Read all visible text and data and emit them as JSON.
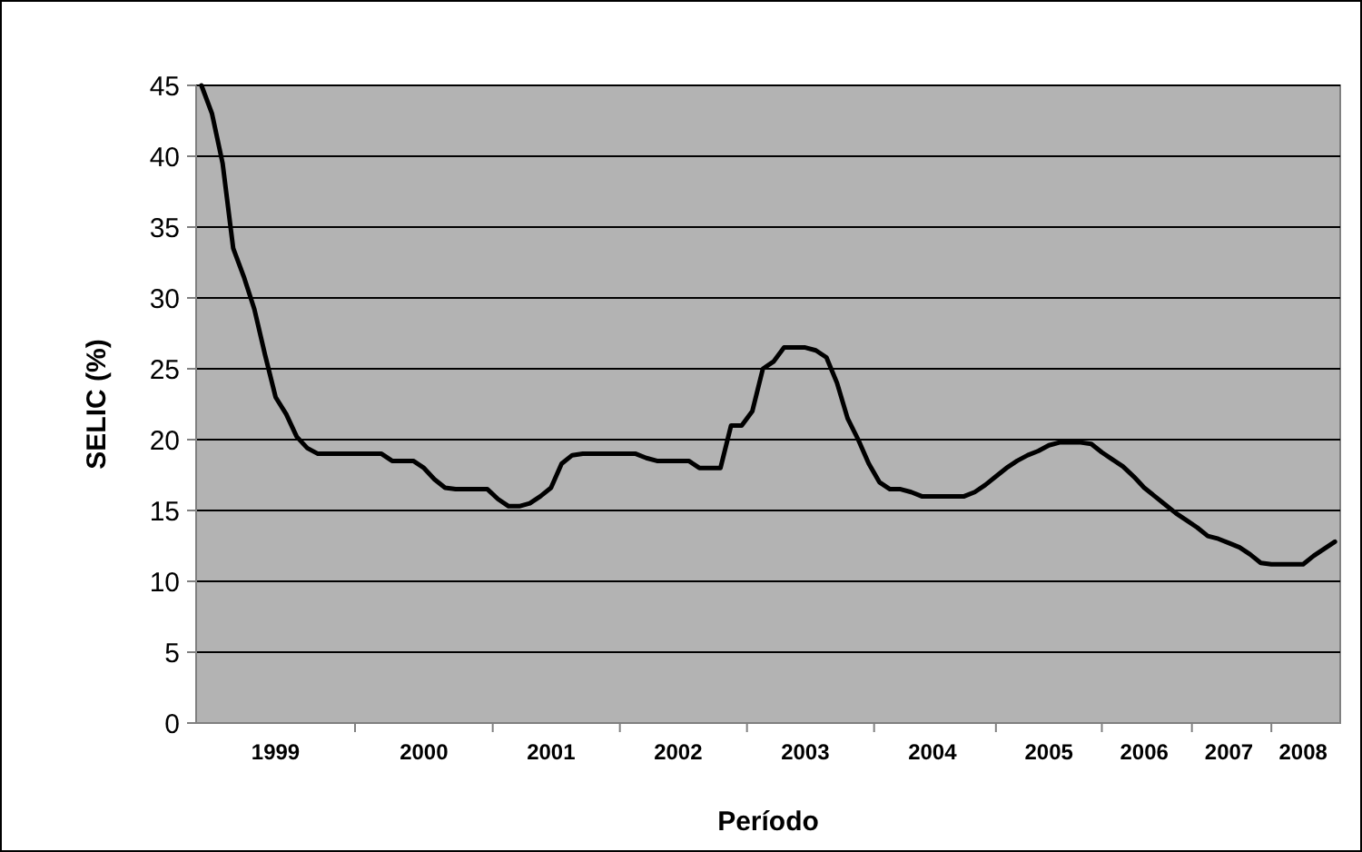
{
  "chart_data": {
    "type": "line",
    "xlabel": "Período",
    "ylabel": "SELIC (%)",
    "categories": [
      null,
      null,
      null,
      null,
      null,
      null,
      null,
      "1999",
      null,
      null,
      null,
      null,
      null,
      null,
      null,
      null,
      null,
      null,
      null,
      null,
      null,
      "2000",
      null,
      null,
      null,
      null,
      null,
      null,
      null,
      null,
      null,
      null,
      null,
      "2001",
      null,
      null,
      null,
      null,
      null,
      null,
      null,
      null,
      null,
      null,
      null,
      "2002",
      null,
      null,
      null,
      null,
      null,
      null,
      null,
      null,
      null,
      null,
      null,
      "2003",
      null,
      null,
      null,
      null,
      null,
      null,
      null,
      null,
      null,
      null,
      null,
      "2004",
      null,
      null,
      null,
      null,
      null,
      null,
      null,
      null,
      null,
      null,
      "2005",
      null,
      null,
      null,
      null,
      null,
      null,
      null,
      null,
      "2006",
      null,
      null,
      null,
      null,
      null,
      null,
      null,
      "2007",
      null,
      null,
      null,
      null,
      null,
      null,
      "2008",
      null,
      null,
      null
    ],
    "series": [
      {
        "color": "#000000",
        "values": [
          45,
          43,
          39.5,
          33.5,
          31.5,
          29.2,
          26,
          23,
          21.8,
          20.2,
          19.4,
          19,
          19,
          19,
          19,
          19,
          19,
          19,
          18.5,
          18.5,
          18.5,
          18,
          17.2,
          16.6,
          16.5,
          16.5,
          16.5,
          16.5,
          15.8,
          15.3,
          15.3,
          15.5,
          16,
          16.6,
          18.3,
          18.9,
          19,
          19,
          19,
          19,
          19,
          19,
          18.7,
          18.5,
          18.5,
          18.5,
          18.5,
          18,
          18,
          18,
          21,
          21,
          22,
          25,
          25.5,
          26.5,
          26.5,
          26.5,
          26.3,
          25.8,
          24,
          21.5,
          20,
          18.3,
          17,
          16.5,
          16.5,
          16.3,
          16,
          16,
          16,
          16,
          16,
          16.3,
          16.8,
          17.4,
          18,
          18.5,
          18.9,
          19.2,
          19.6,
          19.8,
          19.8,
          19.8,
          19.7,
          19.1,
          18.6,
          18.1,
          17.4,
          16.6,
          16,
          15.4,
          14.8,
          14.3,
          13.8,
          13.2,
          13,
          12.7,
          12.4,
          11.9,
          11.3,
          11.2,
          11.2,
          11.2,
          11.2,
          11.8,
          12.3,
          12.8
        ]
      }
    ],
    "ylim": [
      0,
      45
    ],
    "yticks": [
      0,
      5,
      10,
      15,
      20,
      25,
      30,
      35,
      40,
      45
    ],
    "grid": "y",
    "marker": "none",
    "line_style": "solid"
  }
}
